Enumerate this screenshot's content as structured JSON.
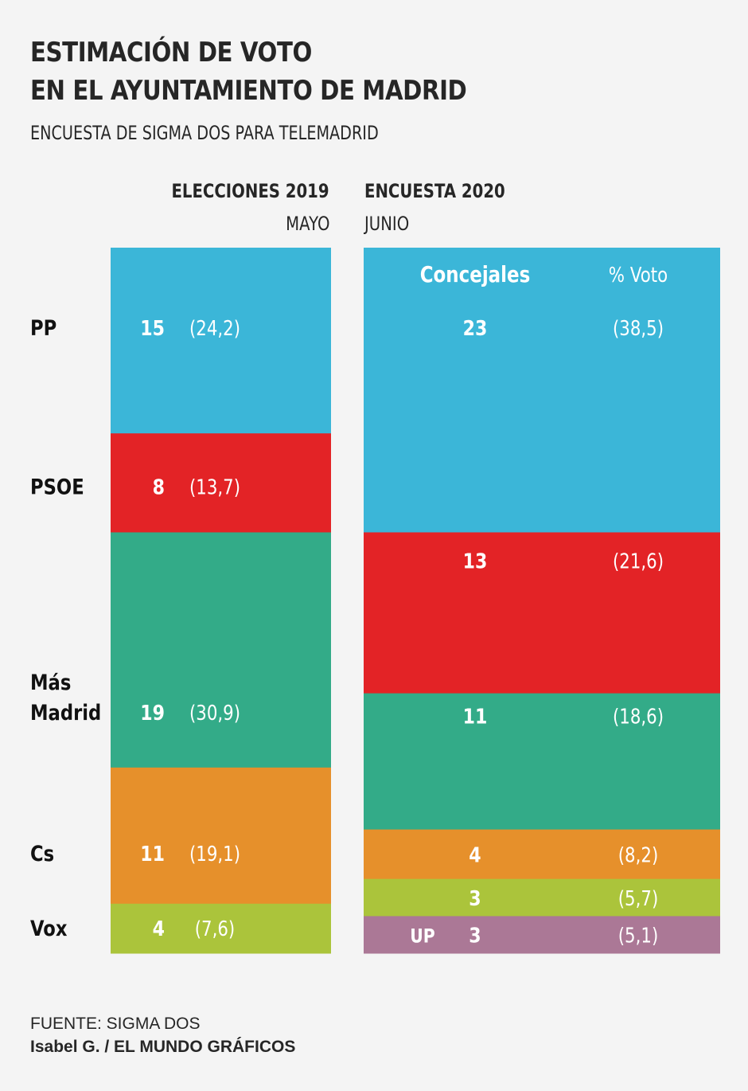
{
  "header": {
    "title_line1": "ESTIMACIÓN DE VOTO",
    "title_line2": "EN EL AYUNTAMIENTO DE MADRID",
    "subtitle": "ENCUESTA DE SIGMA DOS PARA TELEMADRID"
  },
  "columns": {
    "left": {
      "title": "ELECCIONES 2019",
      "subtitle": "MAYO"
    },
    "right": {
      "title": "ENCUESTA 2020",
      "subtitle": "JUNIO",
      "seats_header": "Concejales",
      "vote_header": "% Voto"
    }
  },
  "footer": {
    "source": "FUENTE: SIGMA DOS",
    "credit": "Isabel G. / EL MUNDO GRÁFICOS"
  },
  "chart_data": {
    "type": "bar",
    "subtype": "stacked-100-columns",
    "title": "Estimación de voto en el Ayuntamiento de Madrid",
    "total_seats": 57,
    "categories": [
      "ELECCIONES 2019 (MAYO)",
      "ENCUESTA 2020 (JUNIO)"
    ],
    "series": [
      {
        "name": "elecciones-2019",
        "segments": [
          {
            "party": "PP",
            "seats": 15,
            "vote_label": "(24,2)",
            "vote": 24.2,
            "color": "#3bb6d8"
          },
          {
            "party": "PSOE",
            "seats": 8,
            "vote_label": "(13,7)",
            "vote": 13.7,
            "color": "#e32326"
          },
          {
            "party": "Más Madrid",
            "seats": 19,
            "vote_label": "(30,9)",
            "vote": 30.9,
            "color": "#33ab88"
          },
          {
            "party": "Cs",
            "seats": 11,
            "vote_label": "(19,1)",
            "vote": 19.1,
            "color": "#e6902b"
          },
          {
            "party": "Vox",
            "seats": 4,
            "vote_label": "(7,6)",
            "vote": 7.6,
            "color": "#abc43b"
          }
        ]
      },
      {
        "name": "encuesta-2020",
        "segments": [
          {
            "party": "PP",
            "seats": 23,
            "vote_label": "(38,5)",
            "vote": 38.5,
            "color": "#3bb6d8"
          },
          {
            "party": "PSOE",
            "seats": 13,
            "vote_label": "(21,6)",
            "vote": 21.6,
            "color": "#e32326"
          },
          {
            "party": "Más Madrid",
            "seats": 11,
            "vote_label": "(18,6)",
            "vote": 18.6,
            "color": "#33ab88"
          },
          {
            "party": "Cs",
            "seats": 4,
            "vote_label": "(8,2)",
            "vote": 8.2,
            "color": "#e6902b"
          },
          {
            "party": "Vox",
            "seats": 3,
            "vote_label": "(5,7)",
            "vote": 5.7,
            "color": "#abc43b"
          },
          {
            "party": "UP",
            "seats": 3,
            "vote_label": "(5,1)",
            "vote": 5.1,
            "color": "#ab7896",
            "inline_label": "UP"
          }
        ]
      }
    ],
    "row_labels": [
      {
        "party": "PP",
        "lines": [
          "PP"
        ]
      },
      {
        "party": "PSOE",
        "lines": [
          "PSOE"
        ]
      },
      {
        "party": "Más Madrid",
        "lines": [
          "Más",
          "Madrid"
        ]
      },
      {
        "party": "Cs",
        "lines": [
          "Cs"
        ]
      },
      {
        "party": "Vox",
        "lines": [
          "Vox"
        ]
      }
    ]
  }
}
